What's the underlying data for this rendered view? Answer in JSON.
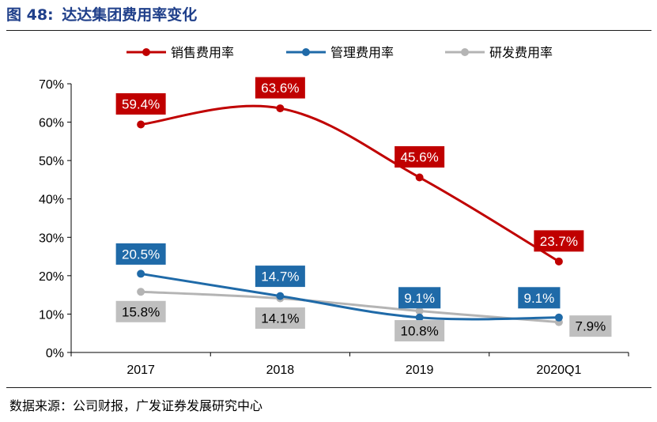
{
  "figure": {
    "label": "图 48:",
    "title": "达达集团费用率变化",
    "source": "数据来源：公司财报，广发证券发展研究中心"
  },
  "chart_data": {
    "type": "line",
    "title": "达达集团费用率变化",
    "xlabel": "",
    "ylabel": "",
    "categories": [
      "2017",
      "2018",
      "2019",
      "2020Q1"
    ],
    "ylim": [
      0,
      70
    ],
    "yticks": [
      "0%",
      "10%",
      "20%",
      "30%",
      "40%",
      "50%",
      "60%",
      "70%"
    ],
    "legend_position": "top",
    "series": [
      {
        "name": "销售费用率",
        "color": "#c00000",
        "values": [
          59.4,
          63.6,
          45.6,
          23.7
        ],
        "labels": [
          "59.4%",
          "63.6%",
          "45.6%",
          "23.7%"
        ],
        "label_style": "filled"
      },
      {
        "name": "管理费用率",
        "color": "#1f6aa8",
        "values": [
          20.5,
          14.7,
          9.1,
          9.1
        ],
        "labels": [
          "20.5%",
          "14.7%",
          "9.1%",
          "9.1%"
        ],
        "label_style": "filled"
      },
      {
        "name": "研发费用率",
        "color": "#b4b4b4",
        "values": [
          15.8,
          14.1,
          10.8,
          7.9
        ],
        "labels": [
          "15.8%",
          "14.1%",
          "10.8%",
          "7.9%"
        ],
        "label_style": "filled-grey"
      }
    ]
  }
}
